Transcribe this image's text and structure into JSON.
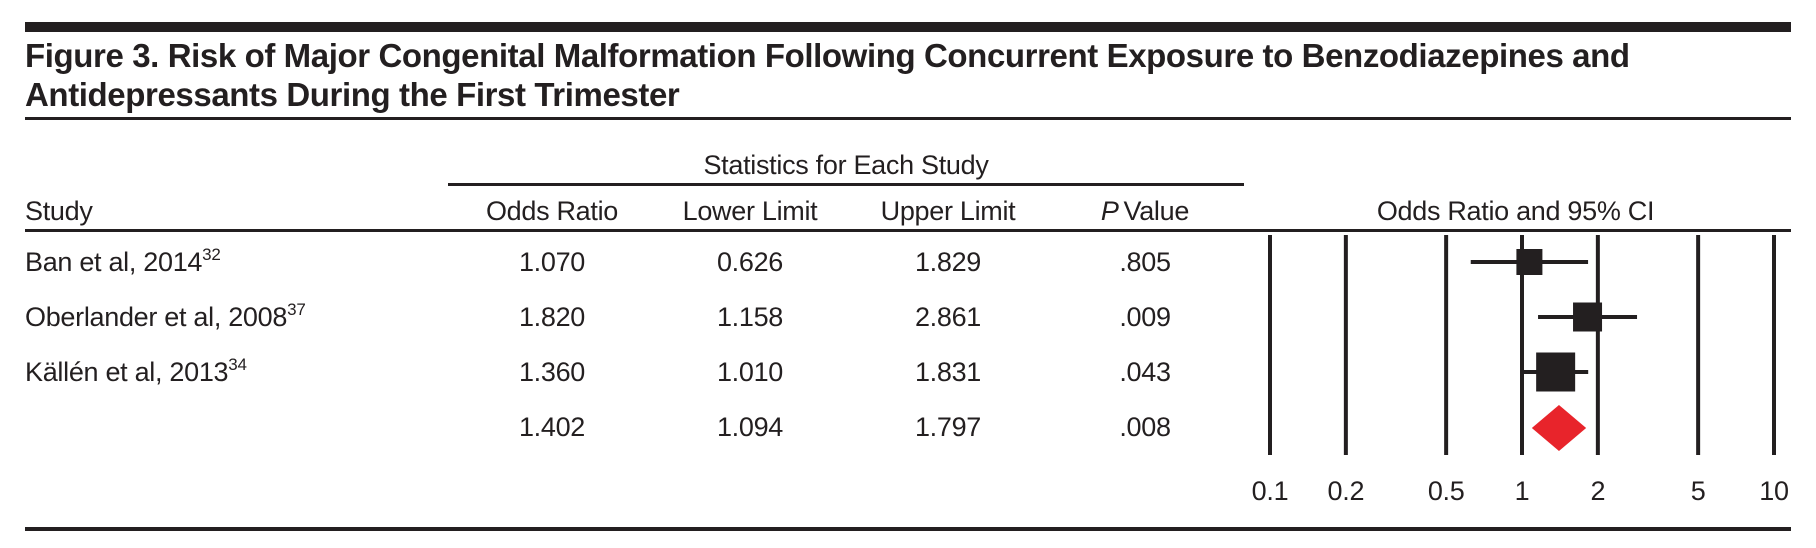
{
  "figure": {
    "title": "Figure 3. Risk of Major Congenital Malformation Following Concurrent Exposure to Benzodiazepines and Antidepressants During the First Trimester"
  },
  "table": {
    "study_col_header": "Study",
    "stats_group_header": "Statistics for Each Study",
    "columns": {
      "odds_ratio": "Odds Ratio",
      "lower": "Lower Limit",
      "upper": "Upper Limit",
      "p_italic": "P",
      "p_rest": "Value"
    },
    "plot_header": "Odds Ratio and 95% CI",
    "rows": [
      {
        "study": "Ban et al, 2014",
        "ref": "32",
        "odds_ratio": "1.070",
        "lower": "0.626",
        "upper": "1.829",
        "p": ".805"
      },
      {
        "study": "Oberlander et al, 2008",
        "ref": "37",
        "odds_ratio": "1.820",
        "lower": "1.158",
        "upper": "2.861",
        "p": ".009"
      },
      {
        "study": "Källén et al, 2013",
        "ref": "34",
        "odds_ratio": "1.360",
        "lower": "1.010",
        "upper": "1.831",
        "p": ".043"
      },
      {
        "study": "",
        "ref": "",
        "odds_ratio": "1.402",
        "lower": "1.094",
        "upper": "1.797",
        "p": ".008"
      }
    ]
  },
  "chart_data": {
    "type": "forest",
    "x_scale": "log",
    "axis_tick_values": [
      0.1,
      0.2,
      0.5,
      1,
      2,
      5,
      10
    ],
    "axis_tick_labels": [
      "0.1",
      "0.2",
      "0.5",
      "1",
      "2",
      "5",
      "10"
    ],
    "plot_header": "Odds Ratio and 95% CI",
    "studies": [
      {
        "name": "Ban et al, 2014",
        "odds_ratio": 1.07,
        "lower": 0.626,
        "upper": 1.829,
        "p_value": 0.805,
        "marker_size": 26
      },
      {
        "name": "Oberlander et al, 2008",
        "odds_ratio": 1.82,
        "lower": 1.158,
        "upper": 2.861,
        "p_value": 0.009,
        "marker_size": 29
      },
      {
        "name": "Källén et al, 2013",
        "odds_ratio": 1.36,
        "lower": 1.01,
        "upper": 1.831,
        "p_value": 0.043,
        "marker_size": 39
      }
    ],
    "pooled": {
      "odds_ratio": 1.402,
      "lower": 1.094,
      "upper": 1.797,
      "p_value": 0.008
    },
    "colors": {
      "study_marker": "#231f20",
      "ci_line": "#231f20",
      "gridline": "#231f20",
      "pooled_diamond": "#e8242b"
    }
  }
}
